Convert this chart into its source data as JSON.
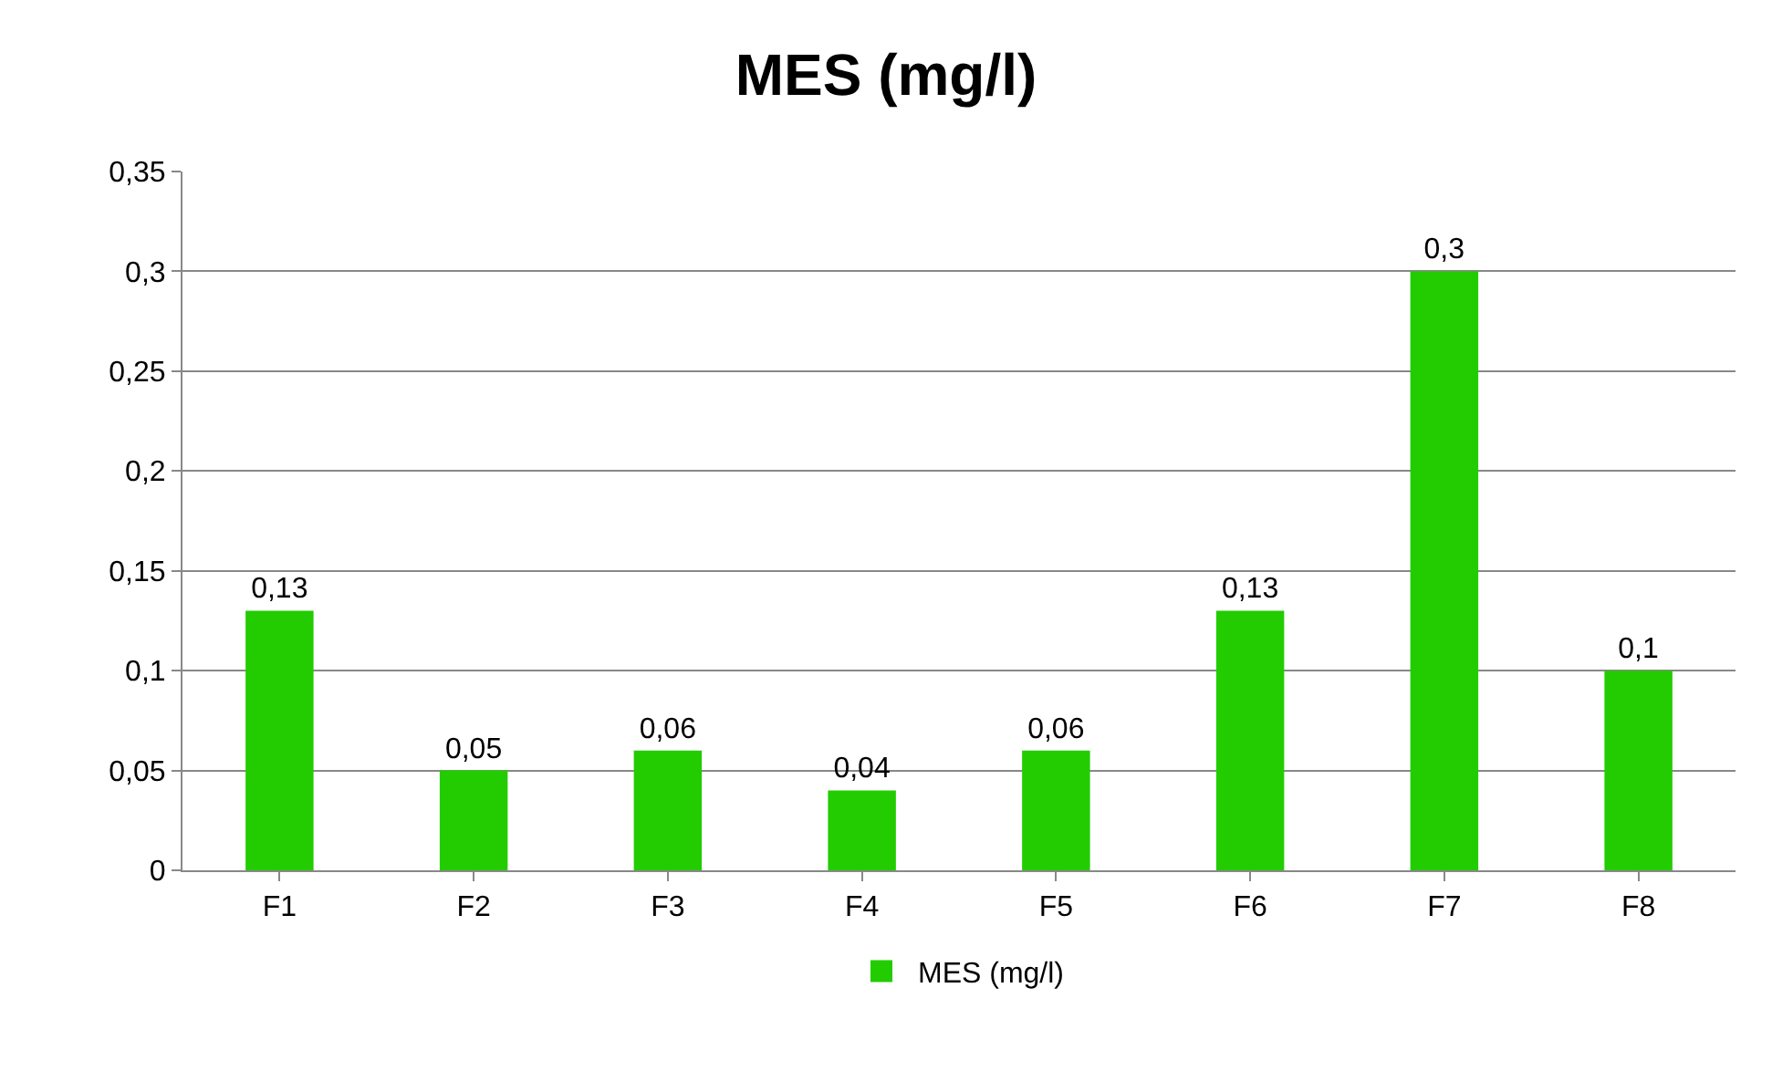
{
  "chart_data": {
    "type": "bar",
    "title": "MES (mg/l)",
    "categories": [
      "F1",
      "F2",
      "F3",
      "F4",
      "F5",
      "F6",
      "F7",
      "F8"
    ],
    "series": [
      {
        "name": "MES (mg/l)",
        "color": "#22cc00",
        "values": [
          0.13,
          0.05,
          0.06,
          0.04,
          0.06,
          0.13,
          0.3,
          0.1
        ],
        "value_labels": [
          "0,13",
          "0,05",
          "0,06",
          "0,04",
          "0,06",
          "0,13",
          "0,3",
          "0,1"
        ]
      }
    ],
    "ylim": [
      0,
      0.35
    ],
    "yticks": [
      0,
      {
        "value": 0.05,
        "label": "0,05"
      },
      {
        "value": 0.1,
        "label": "0,1"
      },
      {
        "value": 0.15,
        "label": "0,15"
      },
      {
        "value": 0.2,
        "label": "0,2"
      },
      {
        "value": 0.25,
        "label": "0,25"
      },
      {
        "value": 0.3,
        "label": "0,3"
      },
      {
        "value": 0.35,
        "label": "0,35"
      }
    ],
    "grid": "y",
    "legend": "bottom"
  }
}
